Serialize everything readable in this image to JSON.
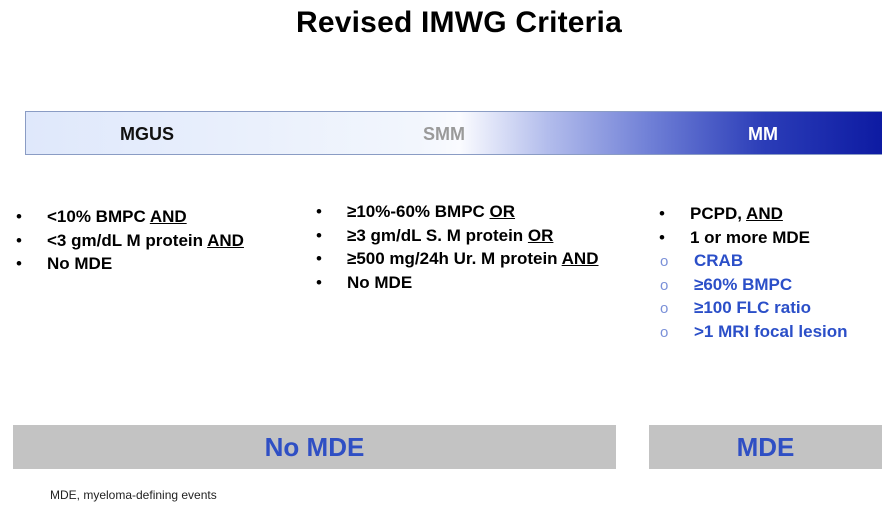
{
  "title": "Revised IMWG Criteria",
  "spectrum": {
    "labels": [
      "MGUS",
      "SMM",
      "MM"
    ]
  },
  "columns": [
    {
      "items": [
        {
          "text": "<10% BMPC ",
          "emph": "AND"
        },
        {
          "text": "<3 gm/dL M protein ",
          "emph": "AND"
        },
        {
          "text": "No MDE",
          "emph": ""
        }
      ]
    },
    {
      "items": [
        {
          "text": "≥10%-60% BMPC ",
          "emph": "OR"
        },
        {
          "text": "≥3 gm/dL S. M protein ",
          "emph": "OR"
        },
        {
          "text": "≥500 mg/24h Ur. M protein ",
          "emph": "AND"
        },
        {
          "text": "No MDE",
          "emph": ""
        }
      ]
    },
    {
      "items": [
        {
          "text": "PCPD, ",
          "emph": "AND"
        },
        {
          "text": "1 or more MDE",
          "emph": ""
        }
      ],
      "subitems": [
        "CRAB",
        "≥60% BMPC",
        "≥100 FLC ratio",
        ">1 MRI focal lesion"
      ]
    }
  ],
  "bars": [
    "No MDE",
    "MDE"
  ],
  "footnote": "MDE, myeloma-defining events",
  "colors": {
    "spectrum_start": "#dfe8fb",
    "spectrum_end": "#0a17a0",
    "bar_bg": "#c3c3c3",
    "accent_text": "#2f4fc4"
  }
}
